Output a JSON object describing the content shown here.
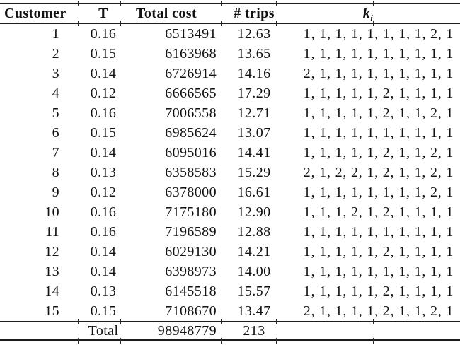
{
  "colors": {
    "background": "#ffffff",
    "text": "#121212",
    "rule": "#1c1c1c"
  },
  "table": {
    "header": {
      "customer": "Customer",
      "t": "T",
      "total_cost": "Total cost",
      "trips": "# trips",
      "ki_base": "k",
      "ki_sub": "i"
    },
    "rows": [
      {
        "customer": "1",
        "t": "0.16",
        "total_cost": "6513491",
        "trips": "12.63",
        "ki": "1, 1, 1, 1, 1, 1, 1, 1, 2, 1"
      },
      {
        "customer": "2",
        "t": "0.15",
        "total_cost": "6163968",
        "trips": "13.65",
        "ki": "1, 1, 1, 1, 1, 1, 1, 1, 1, 1"
      },
      {
        "customer": "3",
        "t": "0.14",
        "total_cost": "6726914",
        "trips": "14.16",
        "ki": "2, 1, 1, 1, 1, 1, 1, 1, 1, 1"
      },
      {
        "customer": "4",
        "t": "0.12",
        "total_cost": "6666565",
        "trips": "17.29",
        "ki": "1, 1, 1, 1, 1, 2, 1, 1, 1, 1"
      },
      {
        "customer": "5",
        "t": "0.16",
        "total_cost": "7006558",
        "trips": "12.71",
        "ki": "1, 1, 1, 1, 1, 2, 1, 1, 2, 1"
      },
      {
        "customer": "6",
        "t": "0.15",
        "total_cost": "6985624",
        "trips": "13.07",
        "ki": "1, 1, 1, 1, 1, 1, 1, 1, 1, 1"
      },
      {
        "customer": "7",
        "t": "0.14",
        "total_cost": "6095016",
        "trips": "14.41",
        "ki": "1, 1, 1, 1, 1, 2, 1, 1, 2, 1"
      },
      {
        "customer": "8",
        "t": "0.13",
        "total_cost": "6358583",
        "trips": "15.29",
        "ki": "2, 1, 2, 2, 1, 2, 1, 1, 2, 1"
      },
      {
        "customer": "9",
        "t": "0.12",
        "total_cost": "6378000",
        "trips": "16.61",
        "ki": "1, 1, 1, 1, 1, 1, 1, 1, 2, 1"
      },
      {
        "customer": "10",
        "t": "0.16",
        "total_cost": "7175180",
        "trips": "12.90",
        "ki": "1, 1, 1, 2, 1, 2, 1, 1, 1, 1"
      },
      {
        "customer": "11",
        "t": "0.16",
        "total_cost": "7196589",
        "trips": "12.88",
        "ki": "1, 1, 1, 1, 1, 1, 1, 1, 1, 1"
      },
      {
        "customer": "12",
        "t": "0.14",
        "total_cost": "6029130",
        "trips": "14.21",
        "ki": "1, 1, 1, 1, 1, 2, 1, 1, 1, 1"
      },
      {
        "customer": "13",
        "t": "0.14",
        "total_cost": "6398973",
        "trips": "14.00",
        "ki": "1, 1, 1, 1, 1, 1, 1, 1, 1, 1"
      },
      {
        "customer": "14",
        "t": "0.13",
        "total_cost": "6145518",
        "trips": "15.57",
        "ki": "1, 1, 1, 1, 1, 2, 1, 1, 1, 1"
      },
      {
        "customer": "15",
        "t": "0.15",
        "total_cost": "7108670",
        "trips": "13.47",
        "ki": "2, 1, 1, 1, 1, 2, 1, 1, 2, 1"
      }
    ],
    "total": {
      "label": "Total",
      "total_cost": "98948779",
      "trips": "213"
    }
  }
}
